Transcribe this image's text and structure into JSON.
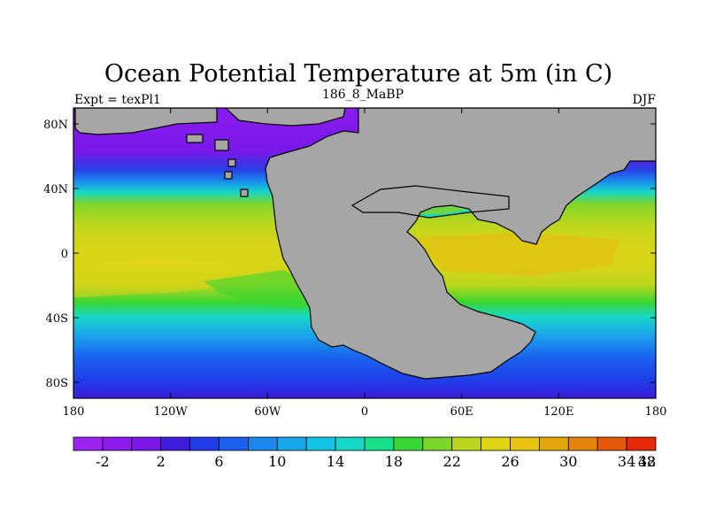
{
  "figure": {
    "title": "Ocean Potential Temperature at 5m (in C)",
    "left_label": "Expt = texPl1",
    "center_label": "186_8_MaBP",
    "right_label": "DJF"
  },
  "map": {
    "land_color": "#a6a6a6",
    "lat_ticks": [
      "80N",
      "40N",
      "0",
      "40S",
      "80S"
    ],
    "lon_ticks": [
      "180",
      "120W",
      "60W",
      "0",
      "60E",
      "120E",
      "180"
    ]
  },
  "colorbar": {
    "colors": [
      "#9d24f0",
      "#8c1cee",
      "#7a18ea",
      "#3d1cdc",
      "#1f3ce8",
      "#1a62ee",
      "#1a86ee",
      "#17a6ea",
      "#14c4e6",
      "#16d8c8",
      "#16e08a",
      "#38d632",
      "#7ed62a",
      "#bcd61e",
      "#e0d414",
      "#e8c410",
      "#e4a80c",
      "#e4840a",
      "#e45808",
      "#e42a08"
    ],
    "labels": [
      "-2",
      "2",
      "6",
      "10",
      "14",
      "18",
      "22",
      "26",
      "30",
      "34",
      "38",
      "42"
    ]
  }
}
